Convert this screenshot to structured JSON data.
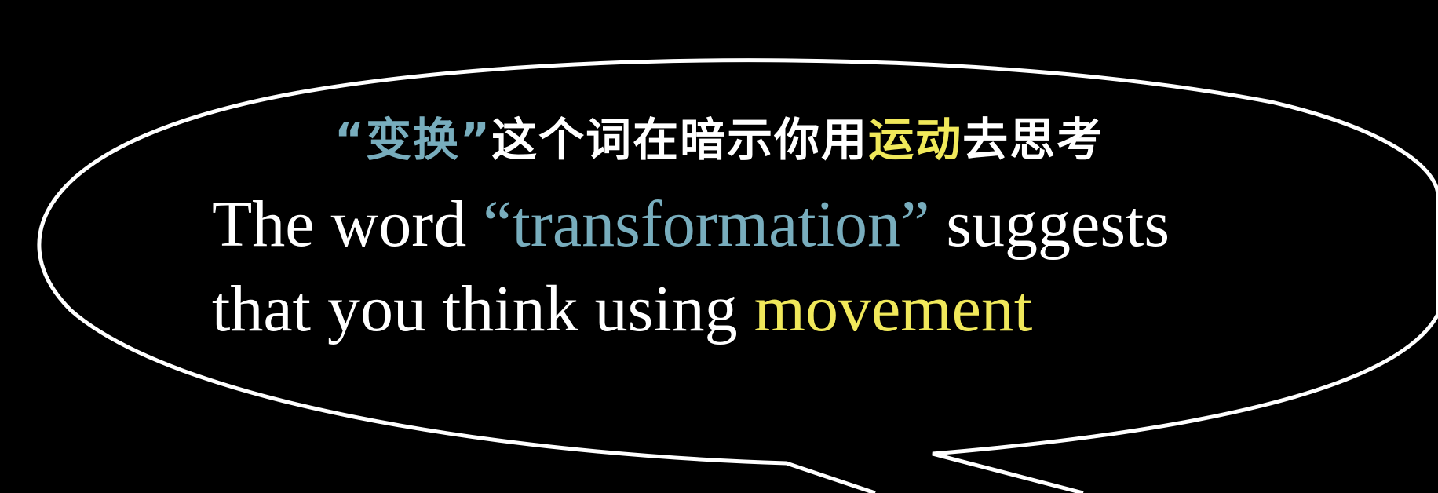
{
  "caption": {
    "zh": {
      "quote_open": "“",
      "term": "变换",
      "quote_close": "”",
      "middle": "这个词在暗示你用",
      "keyword": "运动",
      "end": "去思考"
    },
    "en": {
      "line1_prefix": "The word ",
      "line1_quote_open": "“",
      "line1_term": "transformation",
      "line1_quote_close": "”",
      "line1_suffix": " suggests",
      "line2_prefix": "that you think using ",
      "line2_keyword": "movement"
    }
  },
  "colors": {
    "background": "#000000",
    "text": "#ffffff",
    "term_blue": "#78adbd",
    "keyword_yellow": "#f0e85a",
    "bubble_outline": "#ffffff"
  },
  "shapes": {
    "bubble": "speech-bubble-outline"
  }
}
